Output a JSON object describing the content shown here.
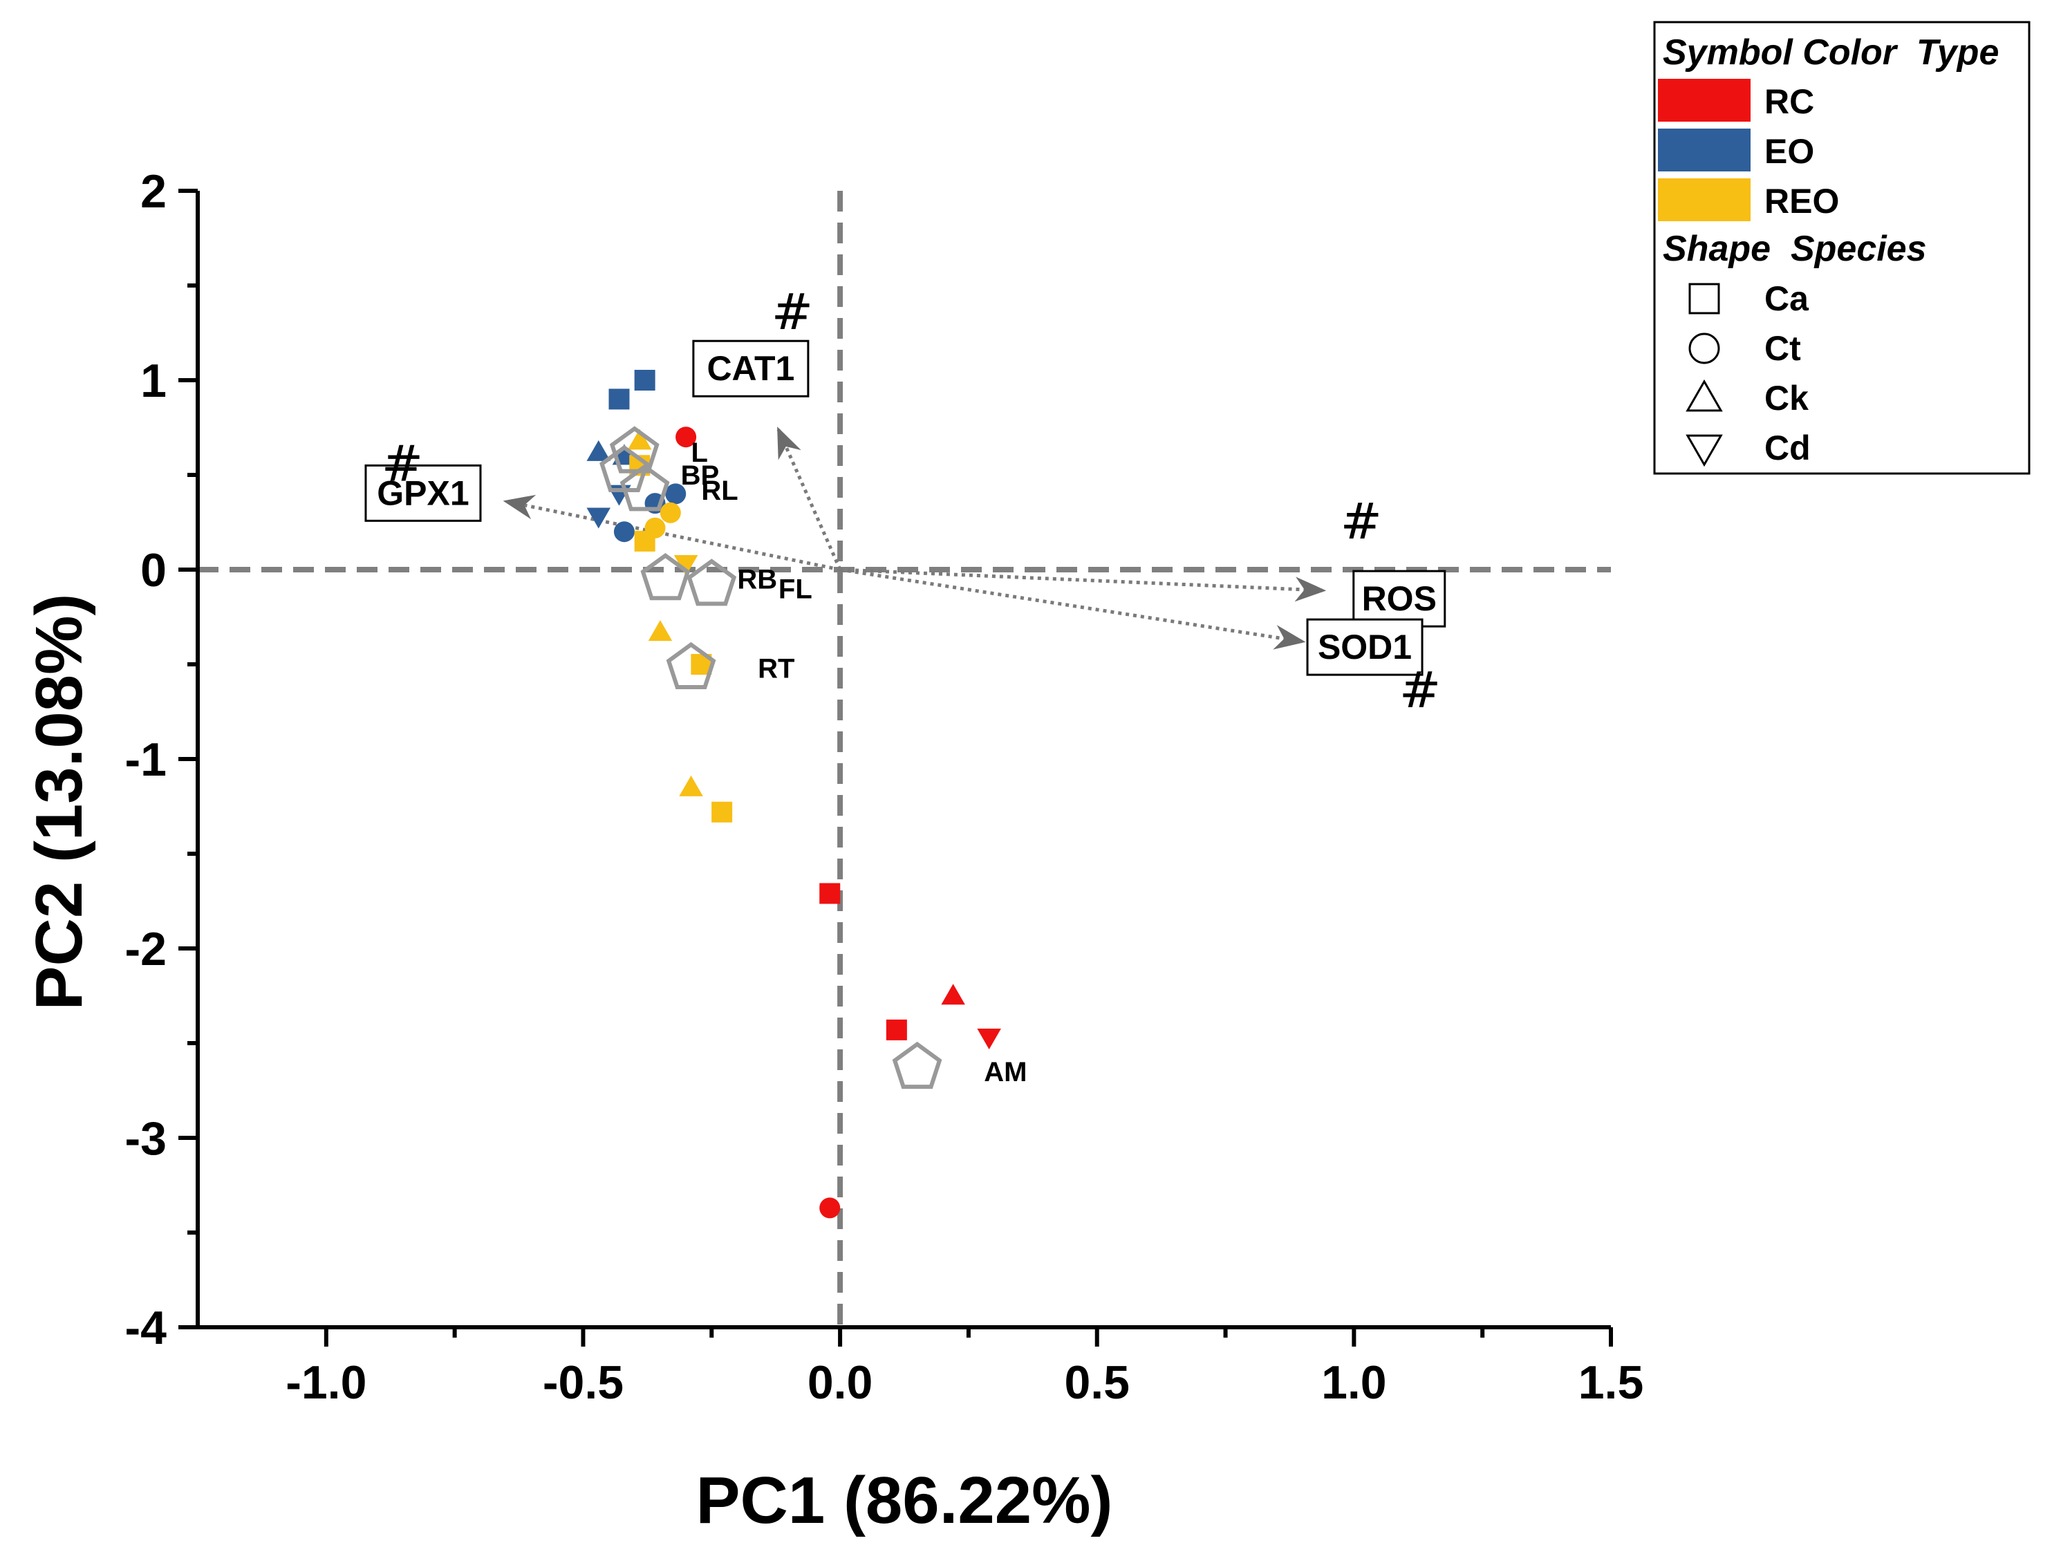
{
  "chart_data": {
    "type": "scatter",
    "subtype": "pca-biplot",
    "title": "",
    "xlabel": "PC1 (86.22%)",
    "ylabel": "PC2 (13.08%)",
    "xlim": [
      -1.25,
      1.5
    ],
    "ylim": [
      -4,
      2
    ],
    "xticks": [
      -1.0,
      -0.5,
      0.0,
      0.5,
      1.0,
      1.5
    ],
    "xtick_labels": [
      "-1.0",
      "-0.5",
      "0.0",
      "0.5",
      "1.0",
      "1.5"
    ],
    "yticks": [
      -4,
      -3,
      -2,
      -1,
      0,
      1,
      2
    ],
    "ytick_labels": [
      "-4",
      "-3",
      "-2",
      "-1",
      "0",
      "1",
      "2"
    ],
    "grid": false,
    "reference_lines": {
      "x": 0,
      "y": 0,
      "style": "dashed",
      "color": "#7f7f7f"
    },
    "colors": {
      "RC": "#ee1111",
      "EO": "#2e5f9a",
      "REO": "#f7be14"
    },
    "legend": {
      "placement": "top-right, outside plot",
      "color_header": "Symbol Color  Type",
      "color_items": [
        {
          "label": "RC",
          "color": "#ee1111"
        },
        {
          "label": "EO",
          "color": "#2e5f9a"
        },
        {
          "label": "REO",
          "color": "#f7be14"
        }
      ],
      "shape_header": "Shape  Species",
      "shape_items": [
        {
          "label": "Ca",
          "shape": "square"
        },
        {
          "label": "Ct",
          "shape": "circle"
        },
        {
          "label": "Ck",
          "shape": "triangle-up"
        },
        {
          "label": "Cd",
          "shape": "triangle-down"
        }
      ]
    },
    "points": [
      {
        "type": "RC",
        "species": "Ca",
        "x": -0.02,
        "y": -1.71
      },
      {
        "type": "RC",
        "species": "Ca",
        "x": 0.11,
        "y": -2.43
      },
      {
        "type": "RC",
        "species": "Ck",
        "x": 0.22,
        "y": -2.25
      },
      {
        "type": "RC",
        "species": "Cd",
        "x": 0.29,
        "y": -2.47
      },
      {
        "type": "RC",
        "species": "Ct",
        "x": -0.02,
        "y": -3.37
      },
      {
        "type": "RC",
        "species": "Ct",
        "x": -0.3,
        "y": 0.7
      },
      {
        "type": "EO",
        "species": "Ca",
        "x": -0.38,
        "y": 1.0
      },
      {
        "type": "EO",
        "species": "Ca",
        "x": -0.43,
        "y": 0.9
      },
      {
        "type": "EO",
        "species": "Ck",
        "x": -0.47,
        "y": 0.62
      },
      {
        "type": "EO",
        "species": "Ck",
        "x": -0.42,
        "y": 0.6
      },
      {
        "type": "EO",
        "species": "Cd",
        "x": -0.47,
        "y": 0.28
      },
      {
        "type": "EO",
        "species": "Cd",
        "x": -0.43,
        "y": 0.4
      },
      {
        "type": "EO",
        "species": "Ct",
        "x": -0.42,
        "y": 0.2
      },
      {
        "type": "EO",
        "species": "Ct",
        "x": -0.32,
        "y": 0.4
      },
      {
        "type": "EO",
        "species": "Ct",
        "x": -0.36,
        "y": 0.35
      },
      {
        "type": "REO",
        "species": "Ck",
        "x": -0.39,
        "y": 0.68
      },
      {
        "type": "REO",
        "species": "Ca",
        "x": -0.39,
        "y": 0.55
      },
      {
        "type": "REO",
        "species": "Ct",
        "x": -0.33,
        "y": 0.3
      },
      {
        "type": "REO",
        "species": "Ct",
        "x": -0.36,
        "y": 0.22
      },
      {
        "type": "REO",
        "species": "Ca",
        "x": -0.38,
        "y": 0.15
      },
      {
        "type": "REO",
        "species": "Cd",
        "x": -0.3,
        "y": 0.03
      },
      {
        "type": "REO",
        "species": "Ck",
        "x": -0.35,
        "y": -0.33
      },
      {
        "type": "REO",
        "species": "Ca",
        "x": -0.27,
        "y": -0.5
      },
      {
        "type": "REO",
        "species": "Ck",
        "x": -0.29,
        "y": -1.15
      },
      {
        "type": "REO",
        "species": "Ca",
        "x": -0.23,
        "y": -1.28
      }
    ],
    "group_centroids": [
      {
        "label": "L",
        "x": -0.4,
        "y": 0.62,
        "label_dx": 0.11,
        "label_dy": 0.0
      },
      {
        "label": "BP",
        "x": -0.42,
        "y": 0.52,
        "label_dx": 0.11,
        "label_dy": -0.02
      },
      {
        "label": "RL",
        "x": -0.38,
        "y": 0.42,
        "label_dx": 0.11,
        "label_dy": 0.0
      },
      {
        "label": "RB",
        "x": -0.34,
        "y": -0.05,
        "label_dx": 0.14,
        "label_dy": 0.0
      },
      {
        "label": "FL",
        "x": -0.25,
        "y": -0.08,
        "label_dx": 0.13,
        "label_dy": -0.02
      },
      {
        "label": "RT",
        "x": -0.29,
        "y": -0.52,
        "label_dx": 0.13,
        "label_dy": 0.0
      },
      {
        "label": "AM",
        "x": 0.15,
        "y": -2.63,
        "label_dx": 0.13,
        "label_dy": -0.02
      }
    ],
    "loadings": [
      {
        "label": "GPX1",
        "x": -0.65,
        "y": 0.36,
        "mark": "#"
      },
      {
        "label": "CAT1",
        "x": -0.12,
        "y": 0.74,
        "mark": "#"
      },
      {
        "label": "ROS",
        "x": 0.94,
        "y": -0.11,
        "mark": "#"
      },
      {
        "label": "SOD1",
        "x": 0.9,
        "y": -0.38,
        "mark": "#"
      }
    ]
  }
}
